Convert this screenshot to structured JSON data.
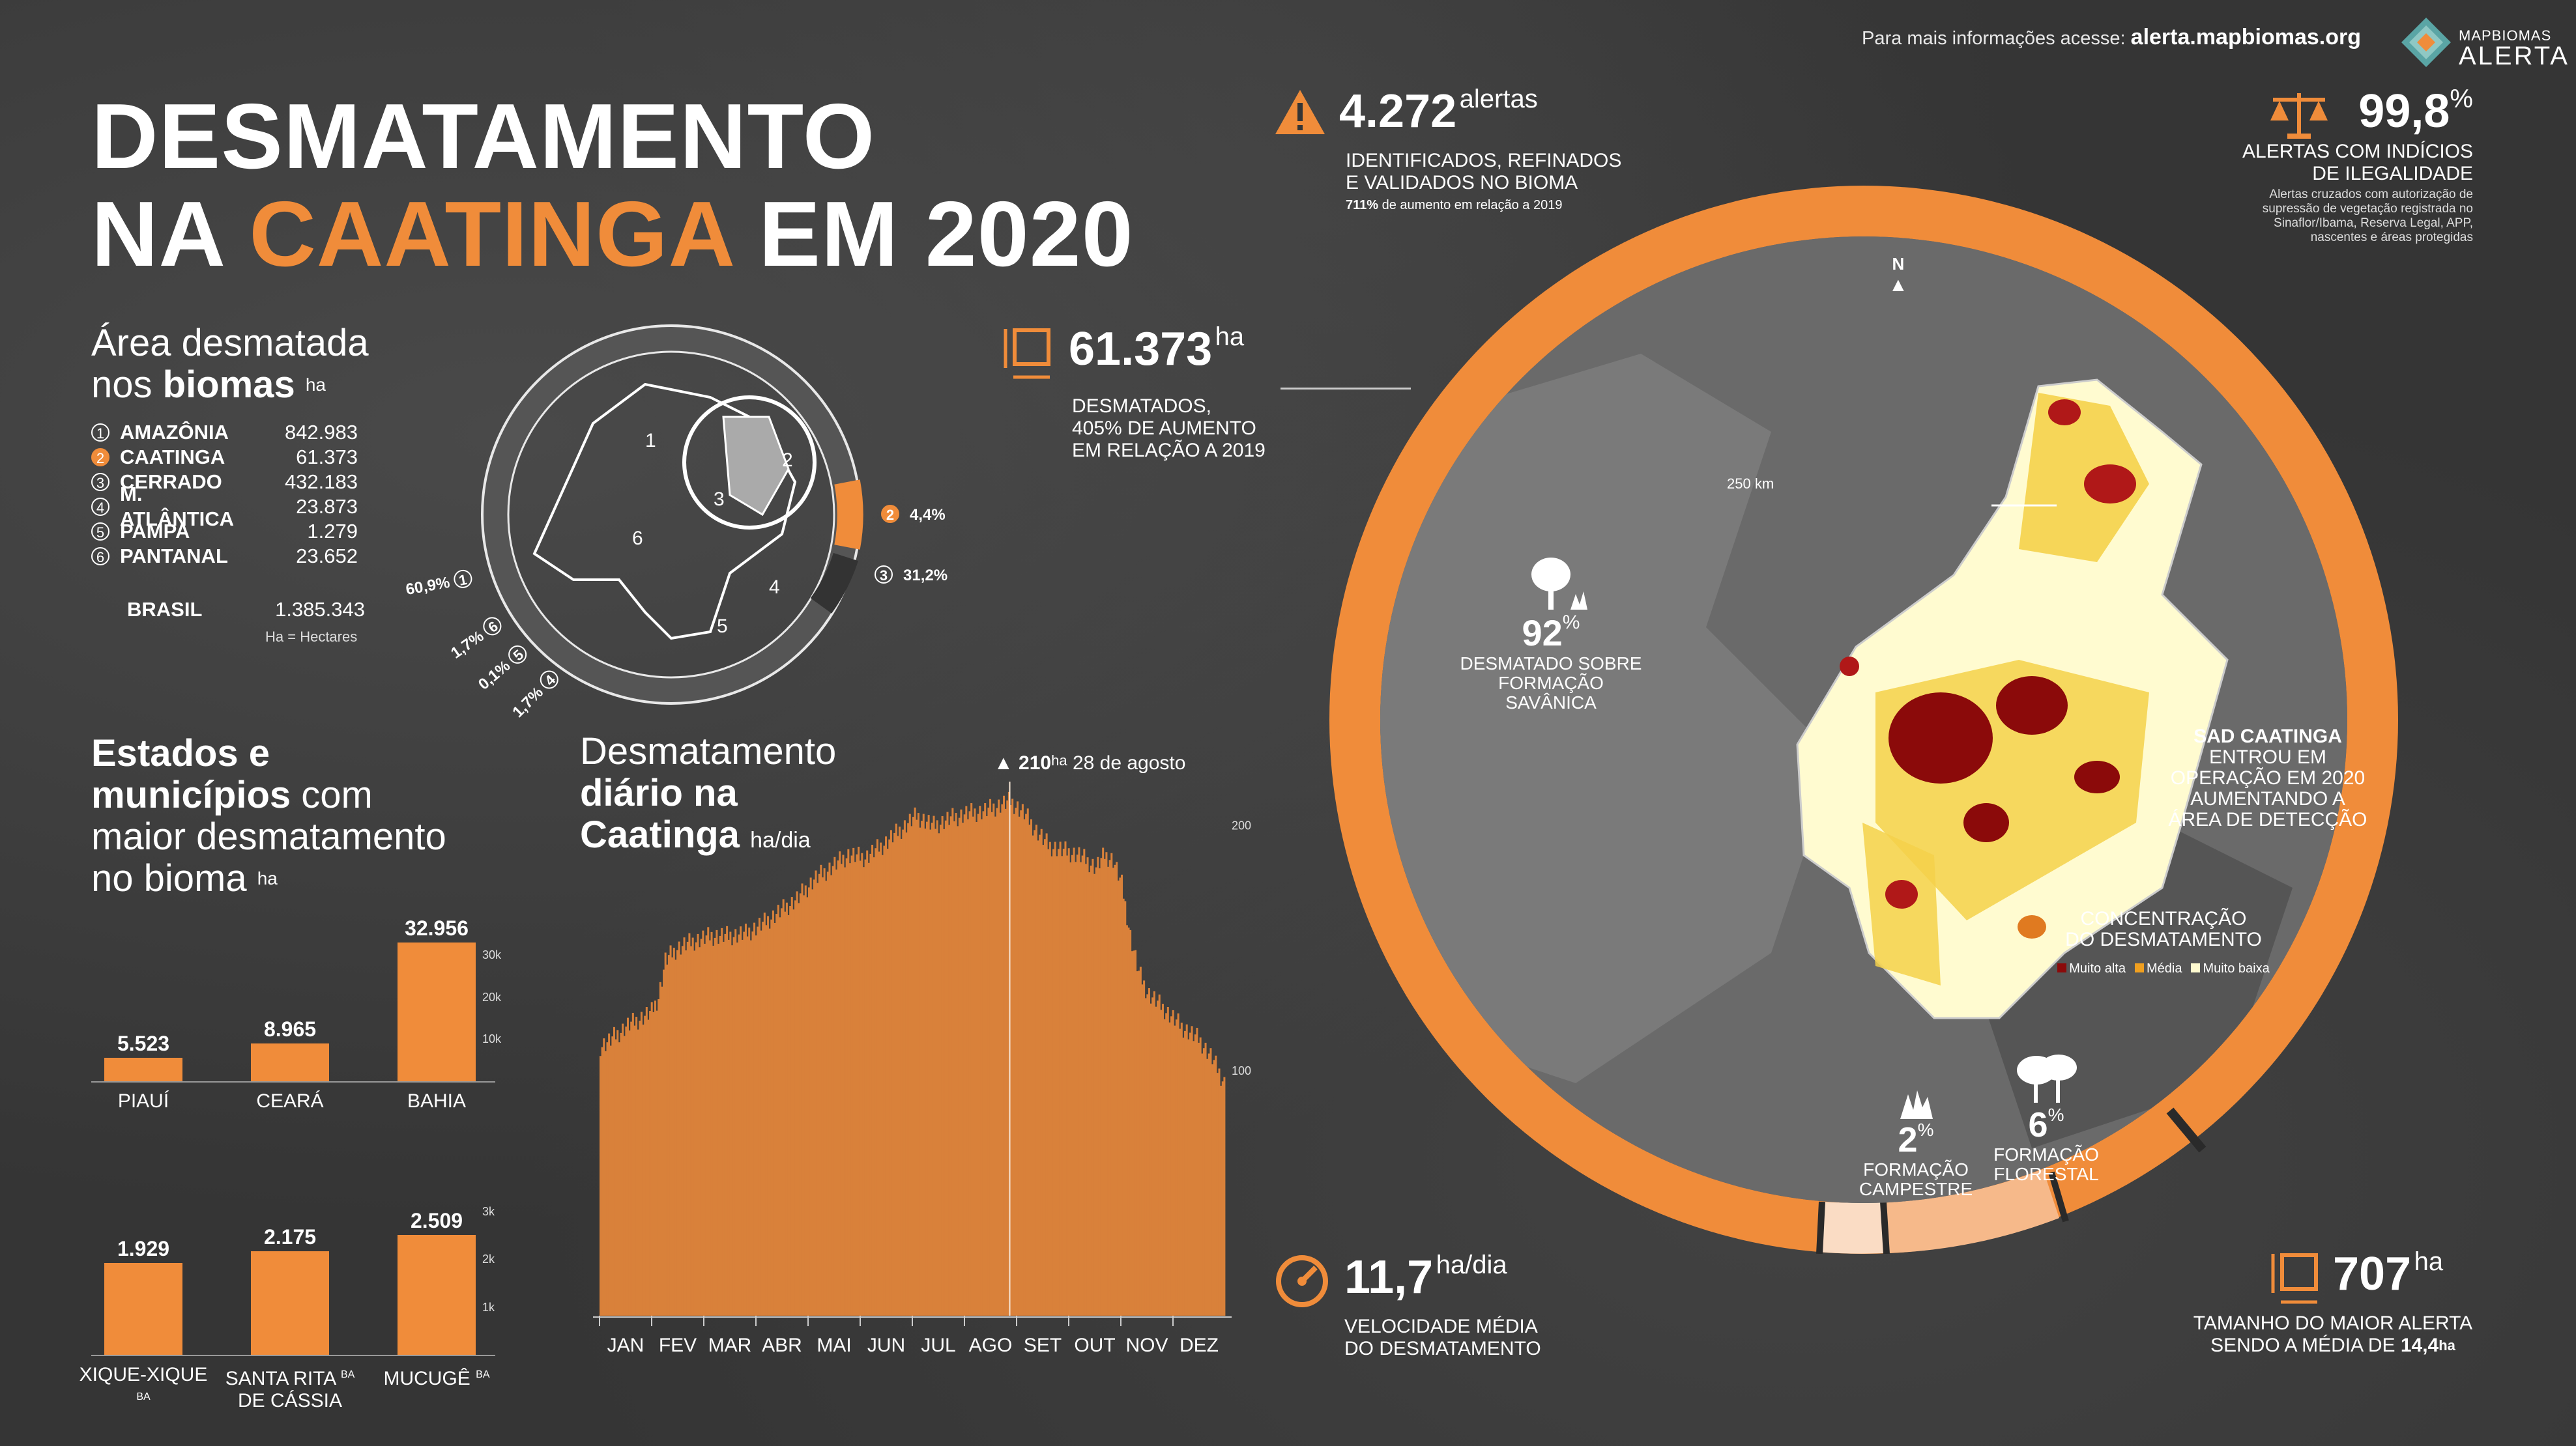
{
  "header": {
    "info_text": "Para mais informações acesse:",
    "info_link": "alerta.mapbiomas.org",
    "logo_line1": "MAPBIOMAS",
    "logo_line2": "ALERTA"
  },
  "title": {
    "line1": "DESMATAMENTO",
    "line2a": "NA ",
    "line2b": "CAATINGA",
    "line2c": " EM 2020"
  },
  "biomes": {
    "title_line1": "Área desmatada",
    "title_line2a": "nos ",
    "title_line2b": "biomas",
    "unit": "ha",
    "items": [
      {
        "n": "1",
        "name": "AMAZÔNIA",
        "value": "842.983"
      },
      {
        "n": "2",
        "name": "CAATINGA",
        "value": "61.373"
      },
      {
        "n": "3",
        "name": "CERRADO",
        "value": "432.183"
      },
      {
        "n": "4",
        "name": "M. ATLÂNTICA",
        "value": "23.873"
      },
      {
        "n": "5",
        "name": "PAMPA",
        "value": "1.279"
      },
      {
        "n": "6",
        "name": "PANTANAL",
        "value": "23.652"
      }
    ],
    "total_label": "BRASIL",
    "total_value": "1.385.343",
    "legend": "Ha = Hectares"
  },
  "donut": {
    "labels": [
      {
        "n": "1",
        "pct": "60,9%"
      },
      {
        "n": "2",
        "pct": "4,4%"
      },
      {
        "n": "3",
        "pct": "31,2%"
      },
      {
        "n": "4",
        "pct": "1,7%"
      },
      {
        "n": "5",
        "pct": "0,1%"
      },
      {
        "n": "6",
        "pct": "1,7%"
      }
    ],
    "map_numbers": [
      "1",
      "2",
      "3",
      "4",
      "5",
      "6"
    ]
  },
  "states": {
    "title_b1": "Estados e",
    "title_b2": "municípios",
    "title_r2": " com",
    "title_3": "maior desmatamento",
    "title_4": "no bioma",
    "unit": "ha",
    "states_chart": {
      "type": "bar",
      "categories": [
        "PIAUÍ",
        "CEARÁ",
        "BAHIA"
      ],
      "values": [
        5523,
        8965,
        32956
      ],
      "labels": [
        "5.523",
        "8.965",
        "32.956"
      ],
      "ticks": [
        "30k",
        "20k",
        "10k"
      ],
      "ylim": [
        0,
        34000
      ]
    },
    "muni_chart": {
      "type": "bar",
      "categories": [
        "XIQUE-XIQUE",
        "SANTA RITA DE CÁSSIA",
        "MUCUGÊ"
      ],
      "cat_line1": [
        "XIQUE-XIQUE",
        "SANTA RITA",
        "MUCUGÊ"
      ],
      "cat_line2": [
        "",
        "DE CÁSSIA",
        ""
      ],
      "cat_suffix": "BA",
      "values": [
        1929,
        2175,
        2509
      ],
      "labels": [
        "1.929",
        "2.175",
        "2.509"
      ],
      "ticks": [
        "3k",
        "2k",
        "1k"
      ],
      "ylim": [
        0,
        3000
      ]
    }
  },
  "daily": {
    "title1": "Desmatamento",
    "title2": "diário na",
    "title3": "Caatinga",
    "unit": "ha/dia",
    "peak_value": "210",
    "peak_unit": "ha",
    "peak_date": "28 de agosto",
    "ticks": [
      "200",
      "100"
    ]
  },
  "chart_data": {
    "type": "bar",
    "title": "Desmatamento diário na Caatinga",
    "ylabel": "ha/dia",
    "categories": [
      "JAN",
      "FEV",
      "MAR",
      "ABR",
      "MAI",
      "JUN",
      "JUL",
      "AGO",
      "SET",
      "OUT",
      "NOV",
      "DEZ"
    ],
    "ylim": [
      0,
      210
    ],
    "peak": {
      "value": 210,
      "date": "28 de agosto"
    },
    "control_points": [
      [
        0,
        110
      ],
      [
        5,
        112
      ],
      [
        10,
        115
      ],
      [
        15,
        118
      ],
      [
        20,
        120
      ],
      [
        25,
        122
      ],
      [
        30,
        124
      ],
      [
        34,
        130
      ],
      [
        38,
        145
      ],
      [
        45,
        150
      ],
      [
        55,
        153
      ],
      [
        65,
        155
      ],
      [
        75,
        155
      ],
      [
        85,
        156
      ],
      [
        95,
        160
      ],
      [
        105,
        165
      ],
      [
        115,
        170
      ],
      [
        125,
        178
      ],
      [
        135,
        183
      ],
      [
        145,
        188
      ],
      [
        155,
        187
      ],
      [
        165,
        192
      ],
      [
        175,
        198
      ],
      [
        185,
        204
      ],
      [
        195,
        200
      ],
      [
        205,
        203
      ],
      [
        215,
        205
      ],
      [
        225,
        206
      ],
      [
        232,
        208
      ],
      [
        240,
        210
      ],
      [
        248,
        205
      ],
      [
        255,
        198
      ],
      [
        262,
        192
      ],
      [
        270,
        190
      ],
      [
        280,
        188
      ],
      [
        290,
        183
      ],
      [
        295,
        188
      ],
      [
        300,
        186
      ],
      [
        305,
        176
      ],
      [
        310,
        155
      ],
      [
        315,
        140
      ],
      [
        320,
        132
      ],
      [
        330,
        125
      ],
      [
        340,
        118
      ],
      [
        350,
        113
      ],
      [
        358,
        105
      ],
      [
        365,
        95
      ]
    ]
  },
  "stats": {
    "alerts_value": "4.272",
    "alerts_unit": "alertas",
    "alerts_l1": "IDENTIFICADOS, REFINADOS",
    "alerts_l2": "E VALIDADOS NO BIOMA",
    "alerts_note_b": "711%",
    "alerts_note": " de aumento em relação a 2019",
    "area_value": "61.373",
    "area_unit": "ha",
    "area_l1": "DESMATADOS,",
    "area_l2": "405% DE AUMENTO",
    "area_l3": "EM RELAÇÃO A 2019",
    "illegal_value": "99,8",
    "illegal_unit": "%",
    "illegal_l1": "ALERTAS COM INDÍCIOS",
    "illegal_l2": "DE ILEGALIDADE",
    "illegal_note1": "Alertas cruzados com autorização de",
    "illegal_note2": "supressão de vegetação registrada no",
    "illegal_note3": "Sinaflor/Ibama, Reserva Legal, APP,",
    "illegal_note4": "nascentes e áreas protegidas",
    "speed_value": "11,7",
    "speed_unit": "ha/dia",
    "speed_l1": "VELOCIDADE MÉDIA",
    "speed_l2": "DO DESMATAMENTO",
    "max_value": "707",
    "max_unit": "ha",
    "max_l1": "TAMANHO DO MAIOR ALERTA",
    "max_l2": "SENDO A MÉDIA DE ",
    "max_avg": "14,4",
    "max_avg_unit": "ha"
  },
  "map": {
    "north": "N",
    "scale": "250 km",
    "savanna_pct": "92",
    "savanna_l1": "DESMATADO SOBRE",
    "savanna_l2": "FORMAÇÃO SAVÂNICA",
    "camp_pct": "2",
    "camp_l1": "FORMAÇÃO",
    "camp_l2": "CAMPESTRE",
    "forest_pct": "6",
    "forest_l1": "FORMAÇÃO",
    "forest_l2": "FLORESTAL",
    "pct_sign": "%",
    "sad_title": "SAD CAATINGA",
    "sad_l1": "ENTROU EM",
    "sad_l2": "OPERAÇÃO EM 2020",
    "sad_l3": "AUMENTANDO A",
    "sad_l4": "ÁREA DE DETECÇÃO",
    "conc_l1": "CONCENTRAÇÃO",
    "conc_l2": "DO DESMATAMENTO",
    "legend": [
      "Muito alta",
      "Média",
      "Muito baixa"
    ],
    "legend_colors": [
      "#8b0a0a",
      "#f0a020",
      "#fffbd0"
    ]
  },
  "colors": {
    "accent": "#f08c3a",
    "bg": "#353535"
  }
}
